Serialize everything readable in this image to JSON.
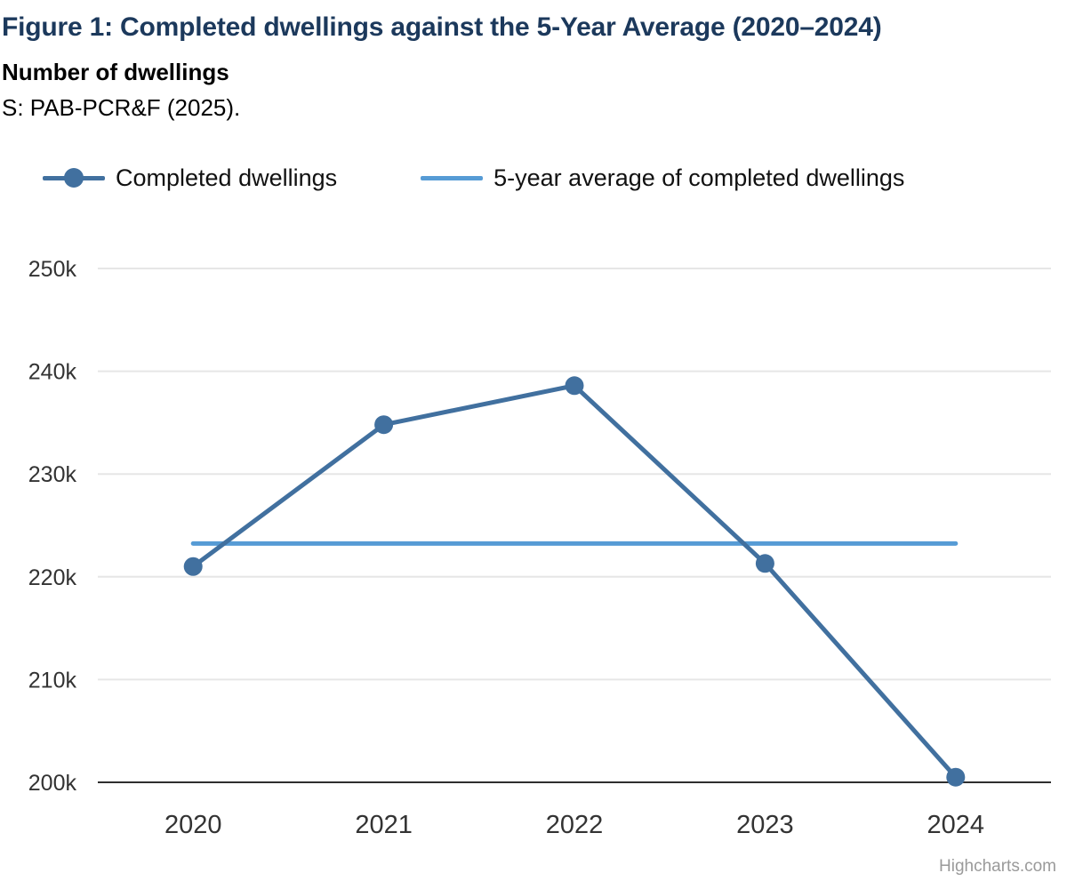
{
  "chart_data": {
    "type": "line",
    "title": "Figure 1: Completed dwellings against the 5-Year Average (2020–2024)",
    "subtitle": "Number of dwellings",
    "source": "S: PAB-PCR&F (2025).",
    "title_color": "#1c395c",
    "categories": [
      "2020",
      "2021",
      "2022",
      "2023",
      "2024"
    ],
    "series": [
      {
        "name": "Completed dwellings",
        "values": [
          221000,
          234800,
          238600,
          221300,
          200500
        ],
        "color": "#41709F",
        "marker": "circle"
      },
      {
        "name": "5-year average of completed dwellings",
        "values": [
          223240,
          223240,
          223240,
          223240,
          223240
        ],
        "color": "#569BD5",
        "marker": "none"
      }
    ],
    "xlabel": "",
    "ylabel": "",
    "ylim": [
      200000,
      250000
    ],
    "yticks": [
      200000,
      210000,
      220000,
      230000,
      240000,
      250000
    ],
    "ytick_labels": [
      "200k",
      "210k",
      "220k",
      "230k",
      "240k",
      "250k"
    ],
    "grid": true,
    "gridline_color": "#e6e6e6",
    "axis_line_color": "#2e2e2e",
    "legend_position": "top",
    "credit": "Highcharts.com"
  }
}
